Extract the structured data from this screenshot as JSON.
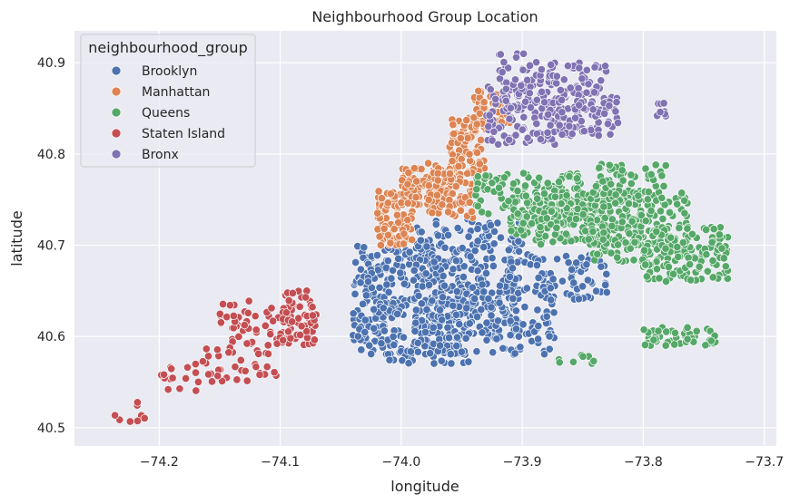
{
  "chart_data": {
    "type": "scatter",
    "title": "Neighbourhood Group Location",
    "xlabel": "longitude",
    "ylabel": "latitude",
    "xlim": [
      -74.27,
      -73.69
    ],
    "ylim": [
      40.48,
      40.935
    ],
    "xticks": [
      -74.2,
      -74.1,
      -74.0,
      -73.9,
      -73.8,
      -73.7
    ],
    "xtick_labels": [
      "−74.2",
      "−74.1",
      "−74.0",
      "−73.9",
      "−73.8",
      "−73.7"
    ],
    "yticks": [
      40.5,
      40.6,
      40.7,
      40.8,
      40.9
    ],
    "ytick_labels": [
      "40.5",
      "40.6",
      "40.7",
      "40.8",
      "40.9"
    ],
    "grid": true,
    "legend": {
      "title": "neighbourhood_group",
      "placement": "upper-left"
    },
    "series": [
      {
        "name": "Brooklyn",
        "color": "#4c72b0",
        "regions": [
          {
            "x": [
              -74.04,
              -73.95
            ],
            "y": [
              40.58,
              40.7
            ],
            "density": 260
          },
          {
            "x": [
              -73.99,
              -73.9
            ],
            "y": [
              40.6,
              40.73
            ],
            "density": 240
          },
          {
            "x": [
              -73.97,
              -73.87
            ],
            "y": [
              40.58,
              40.66
            ],
            "density": 130
          },
          {
            "x": [
              -73.92,
              -73.83
            ],
            "y": [
              40.64,
              40.69
            ],
            "density": 90
          },
          {
            "x": [
              -74.04,
              -74.0
            ],
            "y": [
              40.6,
              40.68
            ],
            "density": 50
          },
          {
            "x": [
              -74.02,
              -73.94
            ],
            "y": [
              40.57,
              40.6
            ],
            "density": 40
          }
        ]
      },
      {
        "name": "Manhattan",
        "color": "#dd8452",
        "regions": [
          {
            "x": [
              -74.02,
              -73.99
            ],
            "y": [
              40.7,
              40.76
            ],
            "density": 90
          },
          {
            "x": [
              -74.0,
              -73.95
            ],
            "y": [
              40.74,
              40.79
            ],
            "density": 110
          },
          {
            "x": [
              -73.96,
              -73.93
            ],
            "y": [
              40.78,
              40.84
            ],
            "density": 90
          },
          {
            "x": [
              -73.94,
              -73.91
            ],
            "y": [
              40.83,
              40.87
            ],
            "density": 50
          },
          {
            "x": [
              -73.98,
              -73.94
            ],
            "y": [
              40.73,
              40.78
            ],
            "density": 60
          }
        ]
      },
      {
        "name": "Queens",
        "color": "#55a868",
        "regions": [
          {
            "x": [
              -73.94,
              -73.85
            ],
            "y": [
              40.73,
              40.78
            ],
            "density": 150
          },
          {
            "x": [
              -73.89,
              -73.8
            ],
            "y": [
              40.7,
              40.76
            ],
            "density": 180
          },
          {
            "x": [
              -73.85,
              -73.76
            ],
            "y": [
              40.68,
              40.76
            ],
            "density": 170
          },
          {
            "x": [
              -73.8,
              -73.73
            ],
            "y": [
              40.66,
              40.72
            ],
            "density": 140
          },
          {
            "x": [
              -73.84,
              -73.78
            ],
            "y": [
              40.75,
              40.79
            ],
            "density": 60
          },
          {
            "x": [
              -73.8,
              -73.74
            ],
            "y": [
              40.59,
              40.61
            ],
            "density": 50
          },
          {
            "x": [
              -73.87,
              -73.84
            ],
            "y": [
              40.57,
              40.58
            ],
            "density": 8
          },
          {
            "x": [
              -73.91,
              -73.87
            ],
            "y": [
              40.71,
              40.74
            ],
            "density": 60
          }
        ]
      },
      {
        "name": "Staten Island",
        "color": "#c44e52",
        "regions": [
          {
            "x": [
              -74.1,
              -74.07
            ],
            "y": [
              40.59,
              40.65
            ],
            "density": 60
          },
          {
            "x": [
              -74.15,
              -74.09
            ],
            "y": [
              40.59,
              40.64
            ],
            "density": 60
          },
          {
            "x": [
              -74.17,
              -74.1
            ],
            "y": [
              40.55,
              40.59
            ],
            "density": 35
          },
          {
            "x": [
              -74.2,
              -74.15
            ],
            "y": [
              40.54,
              40.57
            ],
            "density": 15
          },
          {
            "x": [
              -74.24,
              -74.2
            ],
            "y": [
              40.5,
              40.53
            ],
            "density": 8
          }
        ]
      },
      {
        "name": "Bronx",
        "color": "#8172b3",
        "regions": [
          {
            "x": [
              -73.93,
              -73.87
            ],
            "y": [
              40.81,
              40.88
            ],
            "density": 120
          },
          {
            "x": [
              -73.88,
              -73.83
            ],
            "y": [
              40.82,
              40.9
            ],
            "density": 100
          },
          {
            "x": [
              -73.87,
              -73.82
            ],
            "y": [
              40.82,
              40.87
            ],
            "density": 60
          },
          {
            "x": [
              -73.92,
              -73.88
            ],
            "y": [
              40.85,
              40.91
            ],
            "density": 40
          },
          {
            "x": [
              -73.79,
              -73.78
            ],
            "y": [
              40.84,
              40.86
            ],
            "density": 8
          }
        ]
      }
    ]
  }
}
